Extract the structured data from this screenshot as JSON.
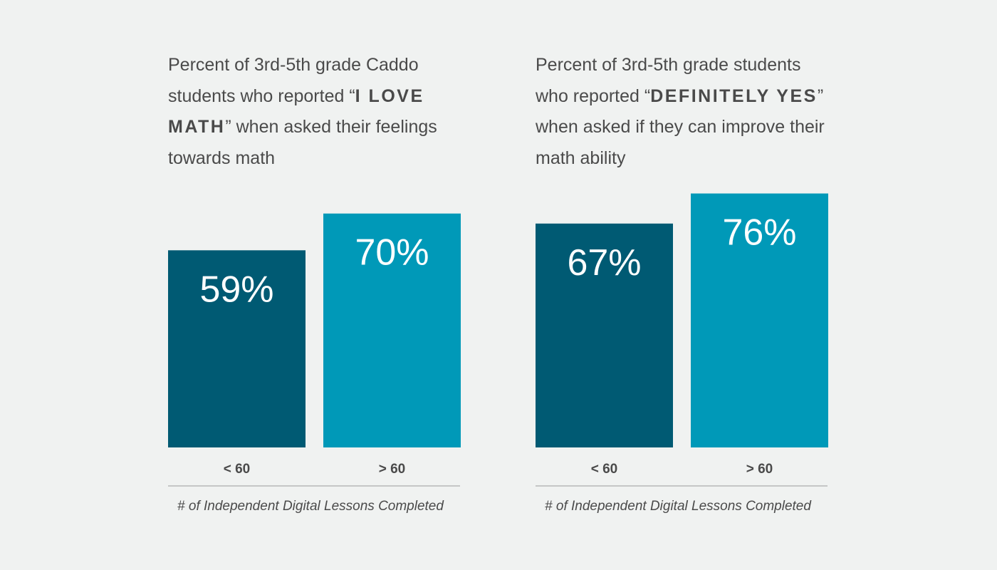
{
  "colors": {
    "background": "#f0f2f1",
    "bar_low": "#005a73",
    "bar_high": "#0099b8",
    "text": "#4a4a4a",
    "bar_label": "#ffffff",
    "axis_line": "#9a9a9a"
  },
  "chart_data": [
    {
      "type": "bar",
      "title": {
        "before": "Percent of 3rd-5th grade Caddo students who reported “",
        "emphasis": "I LOVE MATH",
        "after": "” when asked their feelings towards math"
      },
      "categories": [
        "< 60",
        "> 60"
      ],
      "values": [
        59,
        70
      ],
      "value_labels": [
        "59%",
        "70%"
      ],
      "xlabel": "# of Independent Digital  Lessons Completed",
      "ylim": [
        0,
        100
      ],
      "grid": false
    },
    {
      "type": "bar",
      "title": {
        "before": "Percent of 3rd-5th grade students who reported “",
        "emphasis": "DEFINITELY YES",
        "after": "” when asked if they can improve their math ability"
      },
      "categories": [
        "< 60",
        "> 60"
      ],
      "values": [
        67,
        76
      ],
      "value_labels": [
        "67%",
        "76%"
      ],
      "xlabel": "# of Independent Digital  Lessons Completed",
      "ylim": [
        0,
        100
      ],
      "grid": false
    }
  ]
}
